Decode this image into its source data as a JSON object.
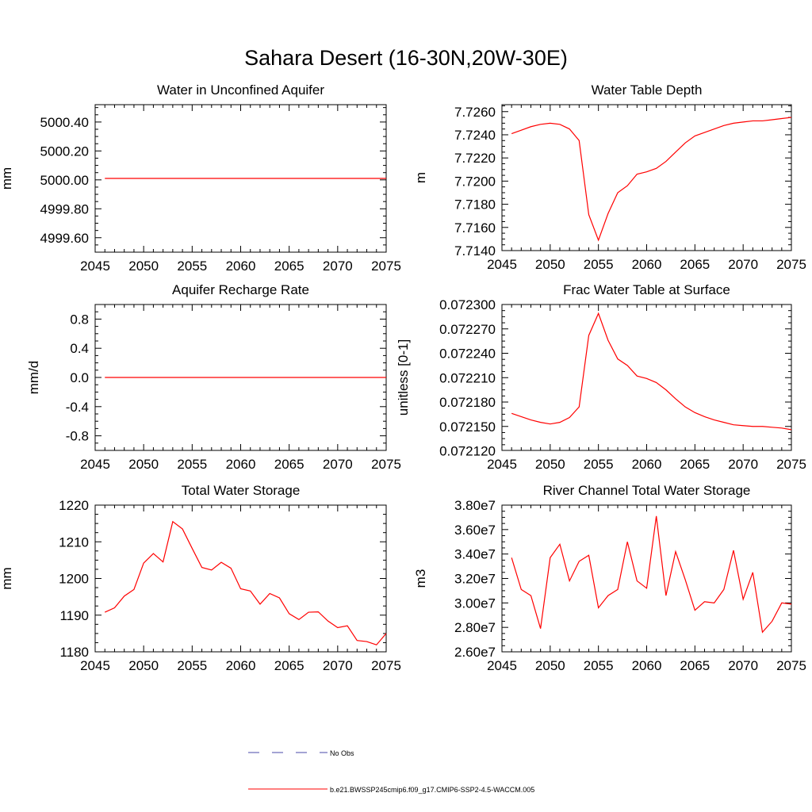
{
  "figure": {
    "title": "Sahara Desert (16-30N,20W-30E)"
  },
  "legend": {
    "entries": [
      {
        "label": "No Obs",
        "color": "#4a4aa8",
        "style": "dashed"
      },
      {
        "label": "b.e21.BWSSP245cmip6.f09_g17.CMIP6-SSP2-4.5-WACCM.005",
        "color": "#ff0000",
        "style": "solid"
      }
    ]
  },
  "chart_data": [
    {
      "type": "line",
      "title": "Water in Unconfined Aquifer",
      "ylabel": "mm",
      "xlim": [
        2045,
        2075
      ],
      "xticks": [
        "2045",
        "2050",
        "2055",
        "2060",
        "2065",
        "2070",
        "2075"
      ],
      "ylim": [
        4999.5,
        5000.52
      ],
      "yticks": [
        "4999.60",
        "4999.80",
        "5000.00",
        "5000.20",
        "5000.40"
      ],
      "x": [
        2046,
        2075
      ],
      "series": [
        {
          "color": "#ff0000",
          "values": [
            5000.01,
            5000.01
          ]
        }
      ]
    },
    {
      "type": "line",
      "title": "Water Table Depth",
      "ylabel": "m",
      "xlim": [
        2045,
        2075
      ],
      "xticks": [
        "2045",
        "2050",
        "2055",
        "2060",
        "2065",
        "2070",
        "2075"
      ],
      "ylim": [
        7.714,
        7.7266
      ],
      "yticks": [
        "7.7140",
        "7.7160",
        "7.7180",
        "7.7200",
        "7.7220",
        "7.7240",
        "7.7260"
      ],
      "x": [
        2046,
        2047,
        2048,
        2049,
        2050,
        2051,
        2052,
        2053,
        2054,
        2055,
        2056,
        2057,
        2058,
        2059,
        2060,
        2061,
        2062,
        2063,
        2064,
        2065,
        2066,
        2067,
        2068,
        2069,
        2070,
        2071,
        2072,
        2073,
        2074,
        2075
      ],
      "series": [
        {
          "color": "#ff0000",
          "values": [
            7.7241,
            7.7244,
            7.7247,
            7.7249,
            7.725,
            7.7249,
            7.7245,
            7.7235,
            7.7171,
            7.7149,
            7.7172,
            7.719,
            7.7196,
            7.7206,
            7.7208,
            7.7211,
            7.7217,
            7.7225,
            7.7233,
            7.7239,
            7.7242,
            7.7245,
            7.7248,
            7.725,
            7.7251,
            7.7252,
            7.7252,
            7.7253,
            7.7254,
            7.7255
          ]
        }
      ]
    },
    {
      "type": "line",
      "title": "Aquifer Recharge Rate",
      "ylabel": "mm/d",
      "xlim": [
        2045,
        2075
      ],
      "xticks": [
        "2045",
        "2050",
        "2055",
        "2060",
        "2065",
        "2070",
        "2075"
      ],
      "ylim": [
        -1.0,
        1.0
      ],
      "yticks": [
        "-0.8",
        "-0.4",
        "0.0",
        "0.4",
        "0.8"
      ],
      "x": [
        2046,
        2075
      ],
      "series": [
        {
          "color": "#ff0000",
          "values": [
            0.0,
            0.0
          ]
        }
      ]
    },
    {
      "type": "line",
      "title": "Frac Water Table at Surface",
      "ylabel": "unitless [0-1]",
      "xlim": [
        2045,
        2075
      ],
      "xticks": [
        "2045",
        "2050",
        "2055",
        "2060",
        "2065",
        "2070",
        "2075"
      ],
      "ylim": [
        0.0721205,
        0.0723
      ],
      "yticks": [
        "0.072120",
        "0.072150",
        "0.072180",
        "0.072210",
        "0.072240",
        "0.072270",
        "0.072300"
      ],
      "x": [
        2046,
        2047,
        2048,
        2049,
        2050,
        2051,
        2052,
        2053,
        2054,
        2055,
        2056,
        2057,
        2058,
        2059,
        2060,
        2061,
        2062,
        2063,
        2064,
        2065,
        2066,
        2067,
        2068,
        2069,
        2070,
        2071,
        2072,
        2073,
        2074,
        2075
      ],
      "series": [
        {
          "color": "#ff0000",
          "values": [
            0.072166,
            0.072162,
            0.072158,
            0.072155,
            0.072153,
            0.072155,
            0.072161,
            0.072174,
            0.072262,
            0.072289,
            0.072256,
            0.072233,
            0.072225,
            0.072212,
            0.072209,
            0.072204,
            0.072195,
            0.072184,
            0.072174,
            0.072167,
            0.072162,
            0.072158,
            0.072155,
            0.072152,
            0.072151,
            0.07215,
            0.07215,
            0.072149,
            0.072148,
            0.072146
          ]
        }
      ]
    },
    {
      "type": "line",
      "title": "Total Water Storage",
      "ylabel": "mm",
      "xlim": [
        2045,
        2075
      ],
      "xticks": [
        "2045",
        "2050",
        "2055",
        "2060",
        "2065",
        "2070",
        "2075"
      ],
      "ylim": [
        1180,
        1220
      ],
      "yticks": [
        "1180",
        "1190",
        "1200",
        "1210",
        "1220"
      ],
      "x": [
        2046,
        2047,
        2048,
        2049,
        2050,
        2051,
        2052,
        2053,
        2054,
        2055,
        2056,
        2057,
        2058,
        2059,
        2060,
        2061,
        2062,
        2063,
        2064,
        2065,
        2066,
        2067,
        2068,
        2069,
        2070,
        2071,
        2072,
        2073,
        2074,
        2075
      ],
      "series": [
        {
          "color": "#ff0000",
          "values": [
            1190.8,
            1192.0,
            1195.2,
            1197.0,
            1204.2,
            1206.8,
            1204.5,
            1215.5,
            1213.5,
            1208.2,
            1203.0,
            1202.3,
            1204.4,
            1202.8,
            1197.2,
            1196.6,
            1193.0,
            1195.9,
            1194.7,
            1190.4,
            1188.8,
            1190.8,
            1190.9,
            1188.4,
            1186.6,
            1187.1,
            1183.1,
            1182.8,
            1181.9,
            1185.0
          ]
        }
      ]
    },
    {
      "type": "line",
      "title": "River Channel Total Water Storage",
      "ylabel": "m3",
      "xlim": [
        2045,
        2075
      ],
      "xticks": [
        "2045",
        "2050",
        "2055",
        "2060",
        "2065",
        "2070",
        "2075"
      ],
      "ylim": [
        26000000,
        38000000
      ],
      "yticks": [
        "2.60e7",
        "2.80e7",
        "3.00e7",
        "3.20e7",
        "3.40e7",
        "3.60e7",
        "3.80e7"
      ],
      "x": [
        2046,
        2047,
        2048,
        2049,
        2050,
        2051,
        2052,
        2053,
        2054,
        2055,
        2056,
        2057,
        2058,
        2059,
        2060,
        2061,
        2062,
        2063,
        2064,
        2065,
        2066,
        2067,
        2068,
        2069,
        2070,
        2071,
        2072,
        2073,
        2074,
        2075
      ],
      "series": [
        {
          "color": "#ff0000",
          "values": [
            33700000,
            31100000,
            30600000,
            27900000,
            33700000,
            34800000,
            31800000,
            33400000,
            33900000,
            29600000,
            30600000,
            31100000,
            35000000,
            31800000,
            31200000,
            37100000,
            30600000,
            34200000,
            31900000,
            29400000,
            30100000,
            30000000,
            31100000,
            34300000,
            30300000,
            32500000,
            27600000,
            28500000,
            30000000,
            29900000
          ]
        }
      ]
    }
  ]
}
